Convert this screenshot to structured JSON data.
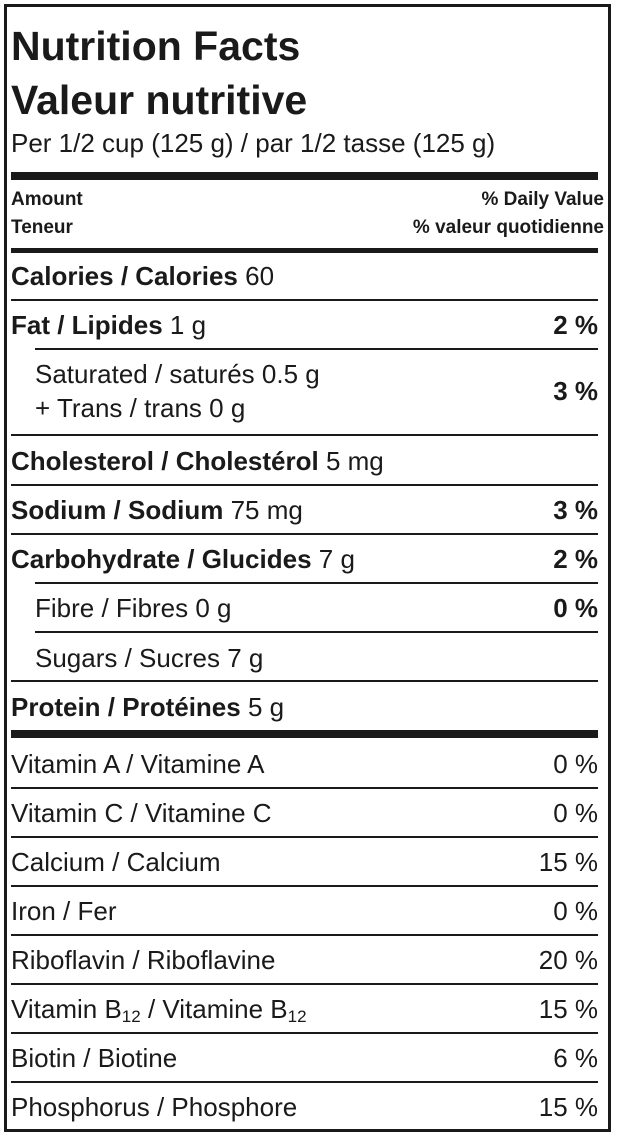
{
  "title_en": "Nutrition Facts",
  "title_fr": "Valeur nutritive",
  "serving": "Per 1/2 cup (125 g) / par 1/2 tasse (125 g)",
  "header": {
    "amount_en": "Amount",
    "amount_fr": "Teneur",
    "dv_en": "% Daily Value",
    "dv_fr": "% valeur quotidienne"
  },
  "calories": {
    "label": "Calories / Calories",
    "value": "60"
  },
  "fat": {
    "label": "Fat / Lipides",
    "amount": "1 g",
    "dv": "2 %"
  },
  "saturated": {
    "line1": "Saturated / saturés 0.5 g",
    "line2": "+ Trans / trans 0 g",
    "dv": "3 %"
  },
  "cholesterol": {
    "label": "Cholesterol / Cholestérol",
    "amount": "5 mg"
  },
  "sodium": {
    "label": "Sodium / Sodium",
    "amount": "75 mg",
    "dv": "3 %"
  },
  "carbohydrate": {
    "label": "Carbohydrate / Glucides",
    "amount": "7 g",
    "dv": "2 %"
  },
  "fibre": {
    "label": "Fibre / Fibres 0 g",
    "dv": "0 %"
  },
  "sugars": {
    "label": "Sugars / Sucres 7 g"
  },
  "protein": {
    "label": "Protein / Protéines",
    "amount": "5 g"
  },
  "vitamin_a": {
    "label": "Vitamin A / Vitamine A",
    "dv": "0 %"
  },
  "vitamin_c": {
    "label": "Vitamin C / Vitamine C",
    "dv": "0 %"
  },
  "calcium": {
    "label": "Calcium / Calcium",
    "dv": "15 %"
  },
  "iron": {
    "label": "Iron / Fer",
    "dv": "0 %"
  },
  "riboflavin": {
    "label": "Riboflavin / Riboflavine",
    "dv": "20 %"
  },
  "vitamin_b12": {
    "label_en": "Vitamin B",
    "sub_en": "12",
    "sep": " / ",
    "label_fr": "Vitamine B",
    "sub_fr": "12",
    "dv": "15 %"
  },
  "biotin": {
    "label": "Biotin / Biotine",
    "dv": "6 %"
  },
  "phosphorus": {
    "label": "Phosphorus / Phosphore",
    "dv": "15 %"
  }
}
